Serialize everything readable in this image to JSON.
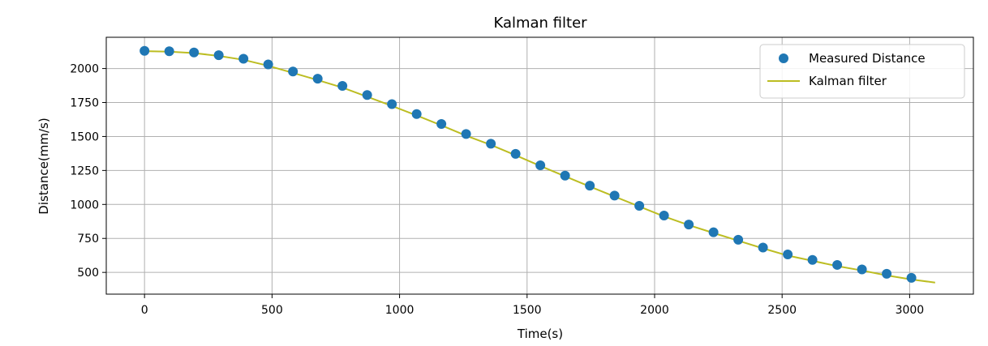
{
  "chart_data": {
    "type": "scatter",
    "title": "Kalman filter",
    "xlabel": "Time(s)",
    "ylabel": "Distance(mm/s)",
    "xlim": [
      -150,
      3250
    ],
    "ylim": [
      340,
      2230
    ],
    "xticks": [
      0,
      500,
      1000,
      1500,
      2000,
      2500,
      3000
    ],
    "yticks": [
      500,
      750,
      1000,
      1250,
      1500,
      1750,
      2000
    ],
    "grid": true,
    "legend": "top-right",
    "colors": {
      "measured": "#1f77b4",
      "kalman": "#bcbd22"
    },
    "series": [
      {
        "name": "Measured Distance",
        "kind": "scatter",
        "x": [
          0,
          97,
          194,
          291,
          388,
          485,
          582,
          679,
          776,
          873,
          970,
          1067,
          1164,
          1261,
          1358,
          1455,
          1552,
          1649,
          1746,
          1843,
          1940,
          2037,
          2134,
          2231,
          2328,
          2425,
          2522,
          2619,
          2716,
          2813,
          2910,
          3007
        ],
        "y": [
          2130,
          2127,
          2118,
          2098,
          2072,
          2030,
          1978,
          1925,
          1872,
          1805,
          1738,
          1665,
          1592,
          1518,
          1447,
          1372,
          1288,
          1212,
          1138,
          1065,
          990,
          918,
          852,
          795,
          740,
          683,
          632,
          592,
          555,
          522,
          490,
          460
        ]
      },
      {
        "name": "Kalman filter",
        "kind": "line",
        "x": [
          0,
          97,
          194,
          291,
          388,
          485,
          582,
          679,
          776,
          873,
          970,
          1067,
          1164,
          1261,
          1358,
          1455,
          1552,
          1649,
          1746,
          1843,
          1940,
          2037,
          2134,
          2231,
          2328,
          2425,
          2522,
          2619,
          2716,
          2813,
          2910,
          3007,
          3100
        ],
        "y": [
          2128,
          2124,
          2114,
          2093,
          2064,
          2020,
          1968,
          1915,
          1860,
          1793,
          1725,
          1655,
          1582,
          1506,
          1438,
          1362,
          1283,
          1207,
          1132,
          1058,
          985,
          912,
          848,
          790,
          733,
          677,
          624,
          585,
          546,
          514,
          478,
          448,
          425
        ]
      }
    ]
  }
}
